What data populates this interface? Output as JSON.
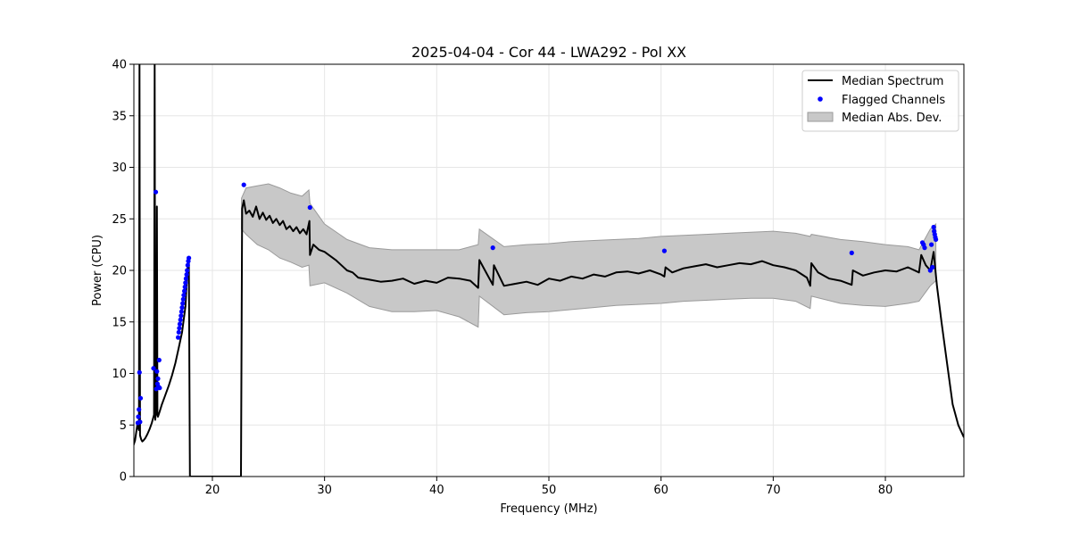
{
  "chart_data": {
    "type": "line",
    "title": "2025-04-04 - Cor 44 - LWA292 - Pol XX",
    "xlabel": "Frequency (MHz)",
    "ylabel": "Power (CPU)",
    "xlim": [
      13.0,
      87.0
    ],
    "ylim": [
      0,
      40
    ],
    "xticks": [
      20,
      30,
      40,
      50,
      60,
      70,
      80
    ],
    "yticks": [
      0,
      5,
      10,
      15,
      20,
      25,
      30,
      35,
      40
    ],
    "grid": true,
    "legend_position": "top-right",
    "legend": {
      "median": "Median Spectrum",
      "flagged": "Flagged Channels",
      "mad": "Median Abs. Dev."
    },
    "colors": {
      "median": "#000000",
      "flagged": "#0000ff",
      "band_fill": "#c8c8c8",
      "band_edge": "#9a9a9a"
    },
    "series": [
      {
        "name": "Median Spectrum",
        "x": [
          12.9,
          13.1,
          13.3,
          13.45,
          13.5,
          13.55,
          13.65,
          13.75,
          13.85,
          14.0,
          14.2,
          14.4,
          14.6,
          14.8,
          14.85,
          14.9,
          15.0,
          15.05,
          15.1,
          15.15,
          15.3,
          15.5,
          15.8,
          16.1,
          16.4,
          16.7,
          17.0,
          17.3,
          17.6,
          17.8,
          17.9,
          18.0,
          19.0,
          20.0,
          21.0,
          22.0,
          22.55,
          22.65,
          22.8,
          23.0,
          23.3,
          23.6,
          23.9,
          24.2,
          24.5,
          24.8,
          25.1,
          25.4,
          25.7,
          26.0,
          26.3,
          26.6,
          26.9,
          27.2,
          27.5,
          27.8,
          28.1,
          28.4,
          28.65,
          28.7,
          29.0,
          29.5,
          30.0,
          30.5,
          31.0,
          31.5,
          32.0,
          32.5,
          33.0,
          34.0,
          35.0,
          36.0,
          37.0,
          38.0,
          39.0,
          40.0,
          41.0,
          42.0,
          43.0,
          43.7,
          43.8,
          44.5,
          45.0,
          45.1,
          46.0,
          47.0,
          48.0,
          49.0,
          50.0,
          51.0,
          52.0,
          53.0,
          54.0,
          55.0,
          56.0,
          57.0,
          58.0,
          59.0,
          60.0,
          60.3,
          60.4,
          61.0,
          62.0,
          63.0,
          64.0,
          65.0,
          66.0,
          67.0,
          68.0,
          69.0,
          70.0,
          71.0,
          72.0,
          73.0,
          73.3,
          73.4,
          74.0,
          75.0,
          76.0,
          77.0,
          77.1,
          78.0,
          79.0,
          80.0,
          81.0,
          82.0,
          83.0,
          83.2,
          83.6,
          84.0,
          84.3,
          84.6,
          85.0,
          85.5,
          86.0,
          86.5,
          87.0
        ],
        "values": [
          2.8,
          3.5,
          5.0,
          4.5,
          40.0,
          4.0,
          3.6,
          3.4,
          3.5,
          3.7,
          4.1,
          4.6,
          5.2,
          6.0,
          40.0,
          5.5,
          6.5,
          26.2,
          6.0,
          5.8,
          6.3,
          7.0,
          7.9,
          8.8,
          9.8,
          11.0,
          12.5,
          14.0,
          16.5,
          20.5,
          20.8,
          0.0,
          0.0,
          0.0,
          0.0,
          0.0,
          0.0,
          26.0,
          26.8,
          25.5,
          25.8,
          25.2,
          26.2,
          25.0,
          25.6,
          24.9,
          25.3,
          24.6,
          25.0,
          24.4,
          24.8,
          24.0,
          24.3,
          23.8,
          24.2,
          23.6,
          24.0,
          23.5,
          24.8,
          21.5,
          22.5,
          22.0,
          21.8,
          21.4,
          21.0,
          20.5,
          20.0,
          19.8,
          19.3,
          19.1,
          18.9,
          19.0,
          19.2,
          18.7,
          19.0,
          18.8,
          19.3,
          19.2,
          19.0,
          18.3,
          21.0,
          19.6,
          18.6,
          20.5,
          18.5,
          18.7,
          18.9,
          18.6,
          19.2,
          19.0,
          19.4,
          19.2,
          19.6,
          19.4,
          19.8,
          19.9,
          19.7,
          20.0,
          19.6,
          19.4,
          20.3,
          19.8,
          20.2,
          20.4,
          20.6,
          20.3,
          20.5,
          20.7,
          20.6,
          20.9,
          20.5,
          20.3,
          20.0,
          19.3,
          18.5,
          20.7,
          19.8,
          19.2,
          19.0,
          18.6,
          20.0,
          19.5,
          19.8,
          20.0,
          19.9,
          20.3,
          19.8,
          21.5,
          20.5,
          20.0,
          21.8,
          18.5,
          15.0,
          11.0,
          7.0,
          5.0,
          3.8
        ]
      },
      {
        "name": "Median Abs. Dev.",
        "x": [
          22.6,
          23.0,
          24.0,
          25.0,
          26.0,
          27.0,
          28.0,
          28.6,
          28.7,
          30.0,
          32.0,
          34.0,
          36.0,
          38.0,
          40.0,
          42.0,
          43.7,
          43.8,
          46.0,
          48.0,
          50.0,
          52.0,
          54.0,
          56.0,
          58.0,
          60.0,
          62.0,
          64.0,
          66.0,
          68.0,
          70.0,
          72.0,
          73.3,
          73.4,
          76.0,
          78.0,
          80.0,
          82.0,
          83.0,
          84.0,
          84.5
        ],
        "upper": [
          27.0,
          28.0,
          28.2,
          28.4,
          28.0,
          27.5,
          27.2,
          27.8,
          26.5,
          24.5,
          23.0,
          22.2,
          22.0,
          22.0,
          22.0,
          22.0,
          22.5,
          24.0,
          22.3,
          22.5,
          22.6,
          22.8,
          22.9,
          23.0,
          23.1,
          23.3,
          23.4,
          23.5,
          23.6,
          23.7,
          23.8,
          23.6,
          23.3,
          23.5,
          23.0,
          22.8,
          22.5,
          22.3,
          22.0,
          24.0,
          24.5
        ],
        "lower": [
          24.0,
          23.5,
          22.5,
          22.0,
          21.2,
          20.8,
          20.3,
          20.5,
          18.5,
          18.8,
          17.8,
          16.5,
          16.0,
          16.0,
          16.1,
          15.5,
          14.5,
          17.5,
          15.7,
          15.9,
          16.0,
          16.2,
          16.4,
          16.6,
          16.7,
          16.8,
          17.0,
          17.1,
          17.2,
          17.3,
          17.3,
          17.0,
          16.3,
          17.5,
          16.8,
          16.6,
          16.5,
          16.8,
          17.0,
          18.5,
          19.0
        ]
      },
      {
        "name": "Flagged Channels",
        "x": [
          13.35,
          13.4,
          13.45,
          13.5,
          13.55,
          13.6,
          14.75,
          14.95,
          15.0,
          15.05,
          15.1,
          15.15,
          15.2,
          15.25,
          15.3,
          16.95,
          17.0,
          17.05,
          17.1,
          17.15,
          17.2,
          17.25,
          17.3,
          17.35,
          17.4,
          17.45,
          17.5,
          17.55,
          17.6,
          17.65,
          17.7,
          17.75,
          17.8,
          17.85,
          17.9,
          22.8,
          28.7,
          45.0,
          60.3,
          77.0,
          83.3,
          83.4,
          83.5,
          84.0,
          84.1,
          84.2,
          84.3,
          84.35,
          84.4,
          84.45,
          84.5
        ],
        "values": [
          5.2,
          5.8,
          6.5,
          10.1,
          5.3,
          7.6,
          10.5,
          27.6,
          8.5,
          10.2,
          9.0,
          9.5,
          8.7,
          11.3,
          8.6,
          13.5,
          14.0,
          14.4,
          14.8,
          15.2,
          15.6,
          16.0,
          16.4,
          16.8,
          17.2,
          17.6,
          18.0,
          18.4,
          18.8,
          19.2,
          19.6,
          20.0,
          20.5,
          20.9,
          21.2,
          28.3,
          26.1,
          22.2,
          21.9,
          21.7,
          22.7,
          22.5,
          22.2,
          20.0,
          22.5,
          20.3,
          24.2,
          23.8,
          23.5,
          23.2,
          23.0
        ]
      }
    ]
  }
}
